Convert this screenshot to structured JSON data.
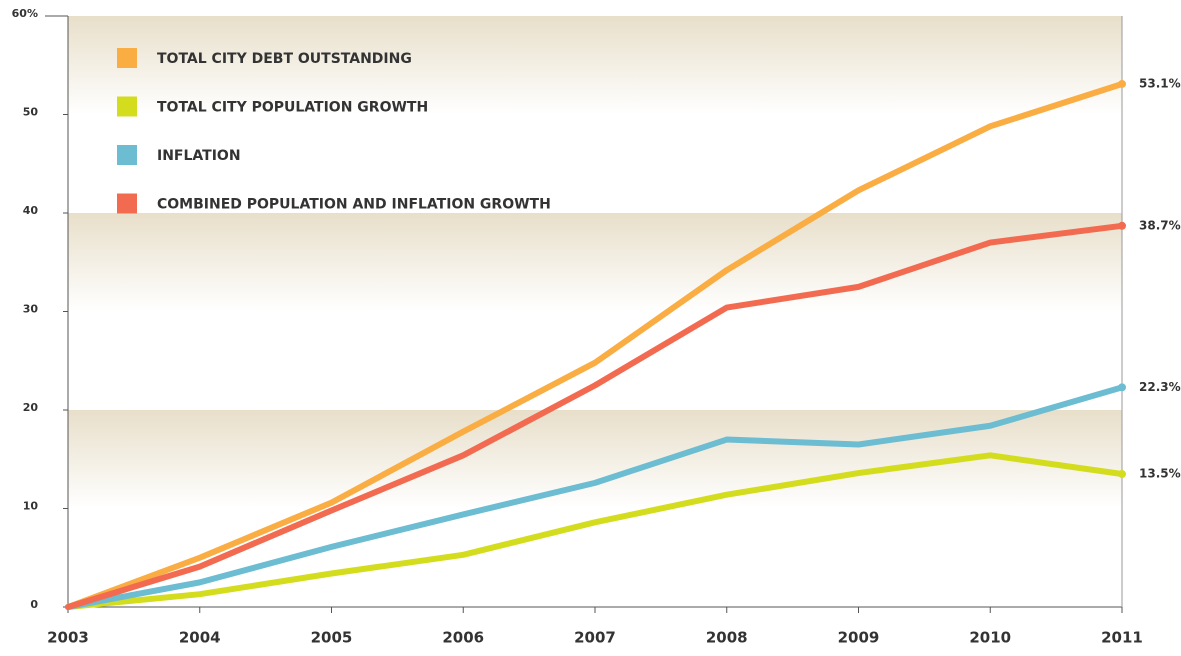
{
  "chart_data": {
    "type": "line",
    "x": [
      2003,
      2004,
      2005,
      2006,
      2007,
      2008,
      2009,
      2010,
      2011
    ],
    "xlim": [
      2003,
      2011
    ],
    "xticks": [
      2003,
      2004,
      2005,
      2006,
      2007,
      2008,
      2009,
      2010,
      2011
    ],
    "ylim": [
      0,
      60
    ],
    "yticks": [
      0,
      10,
      20,
      30,
      40,
      50,
      {
        "value": 60,
        "label": "60%"
      }
    ],
    "legend": "top-left",
    "series": [
      {
        "name": "TOTAL CITY DEBT OUTSTANDING",
        "color": "#f9ad42",
        "values": [
          0,
          5.0,
          10.6,
          17.8,
          24.8,
          34.2,
          42.3,
          48.8,
          53.1
        ],
        "value_labels": [
          null,
          null,
          null,
          null,
          null,
          null,
          null,
          null,
          "53.1%"
        ]
      },
      {
        "name": "TOTAL CITY POPULATION GROWTH",
        "color": "#d4dc1e",
        "values": [
          0,
          1.3,
          3.4,
          5.3,
          8.6,
          11.4,
          13.6,
          15.4,
          13.5
        ],
        "value_labels": [
          null,
          null,
          null,
          null,
          null,
          null,
          null,
          null,
          "13.5%"
        ]
      },
      {
        "name": "INFLATION",
        "color": "#6cbcd2",
        "values": [
          0,
          2.5,
          6.1,
          9.4,
          12.6,
          17.0,
          16.5,
          18.4,
          22.3
        ],
        "value_labels": [
          null,
          null,
          null,
          null,
          null,
          null,
          null,
          null,
          "22.3%"
        ]
      },
      {
        "name": "COMBINED POPULATION AND INFLATION GROWTH",
        "color": "#f26b50",
        "values": [
          0,
          4.1,
          9.8,
          15.4,
          22.5,
          30.4,
          32.5,
          37.0,
          38.7
        ],
        "value_labels": [
          null,
          null,
          null,
          null,
          null,
          null,
          null,
          null,
          "38.7%"
        ]
      }
    ]
  }
}
